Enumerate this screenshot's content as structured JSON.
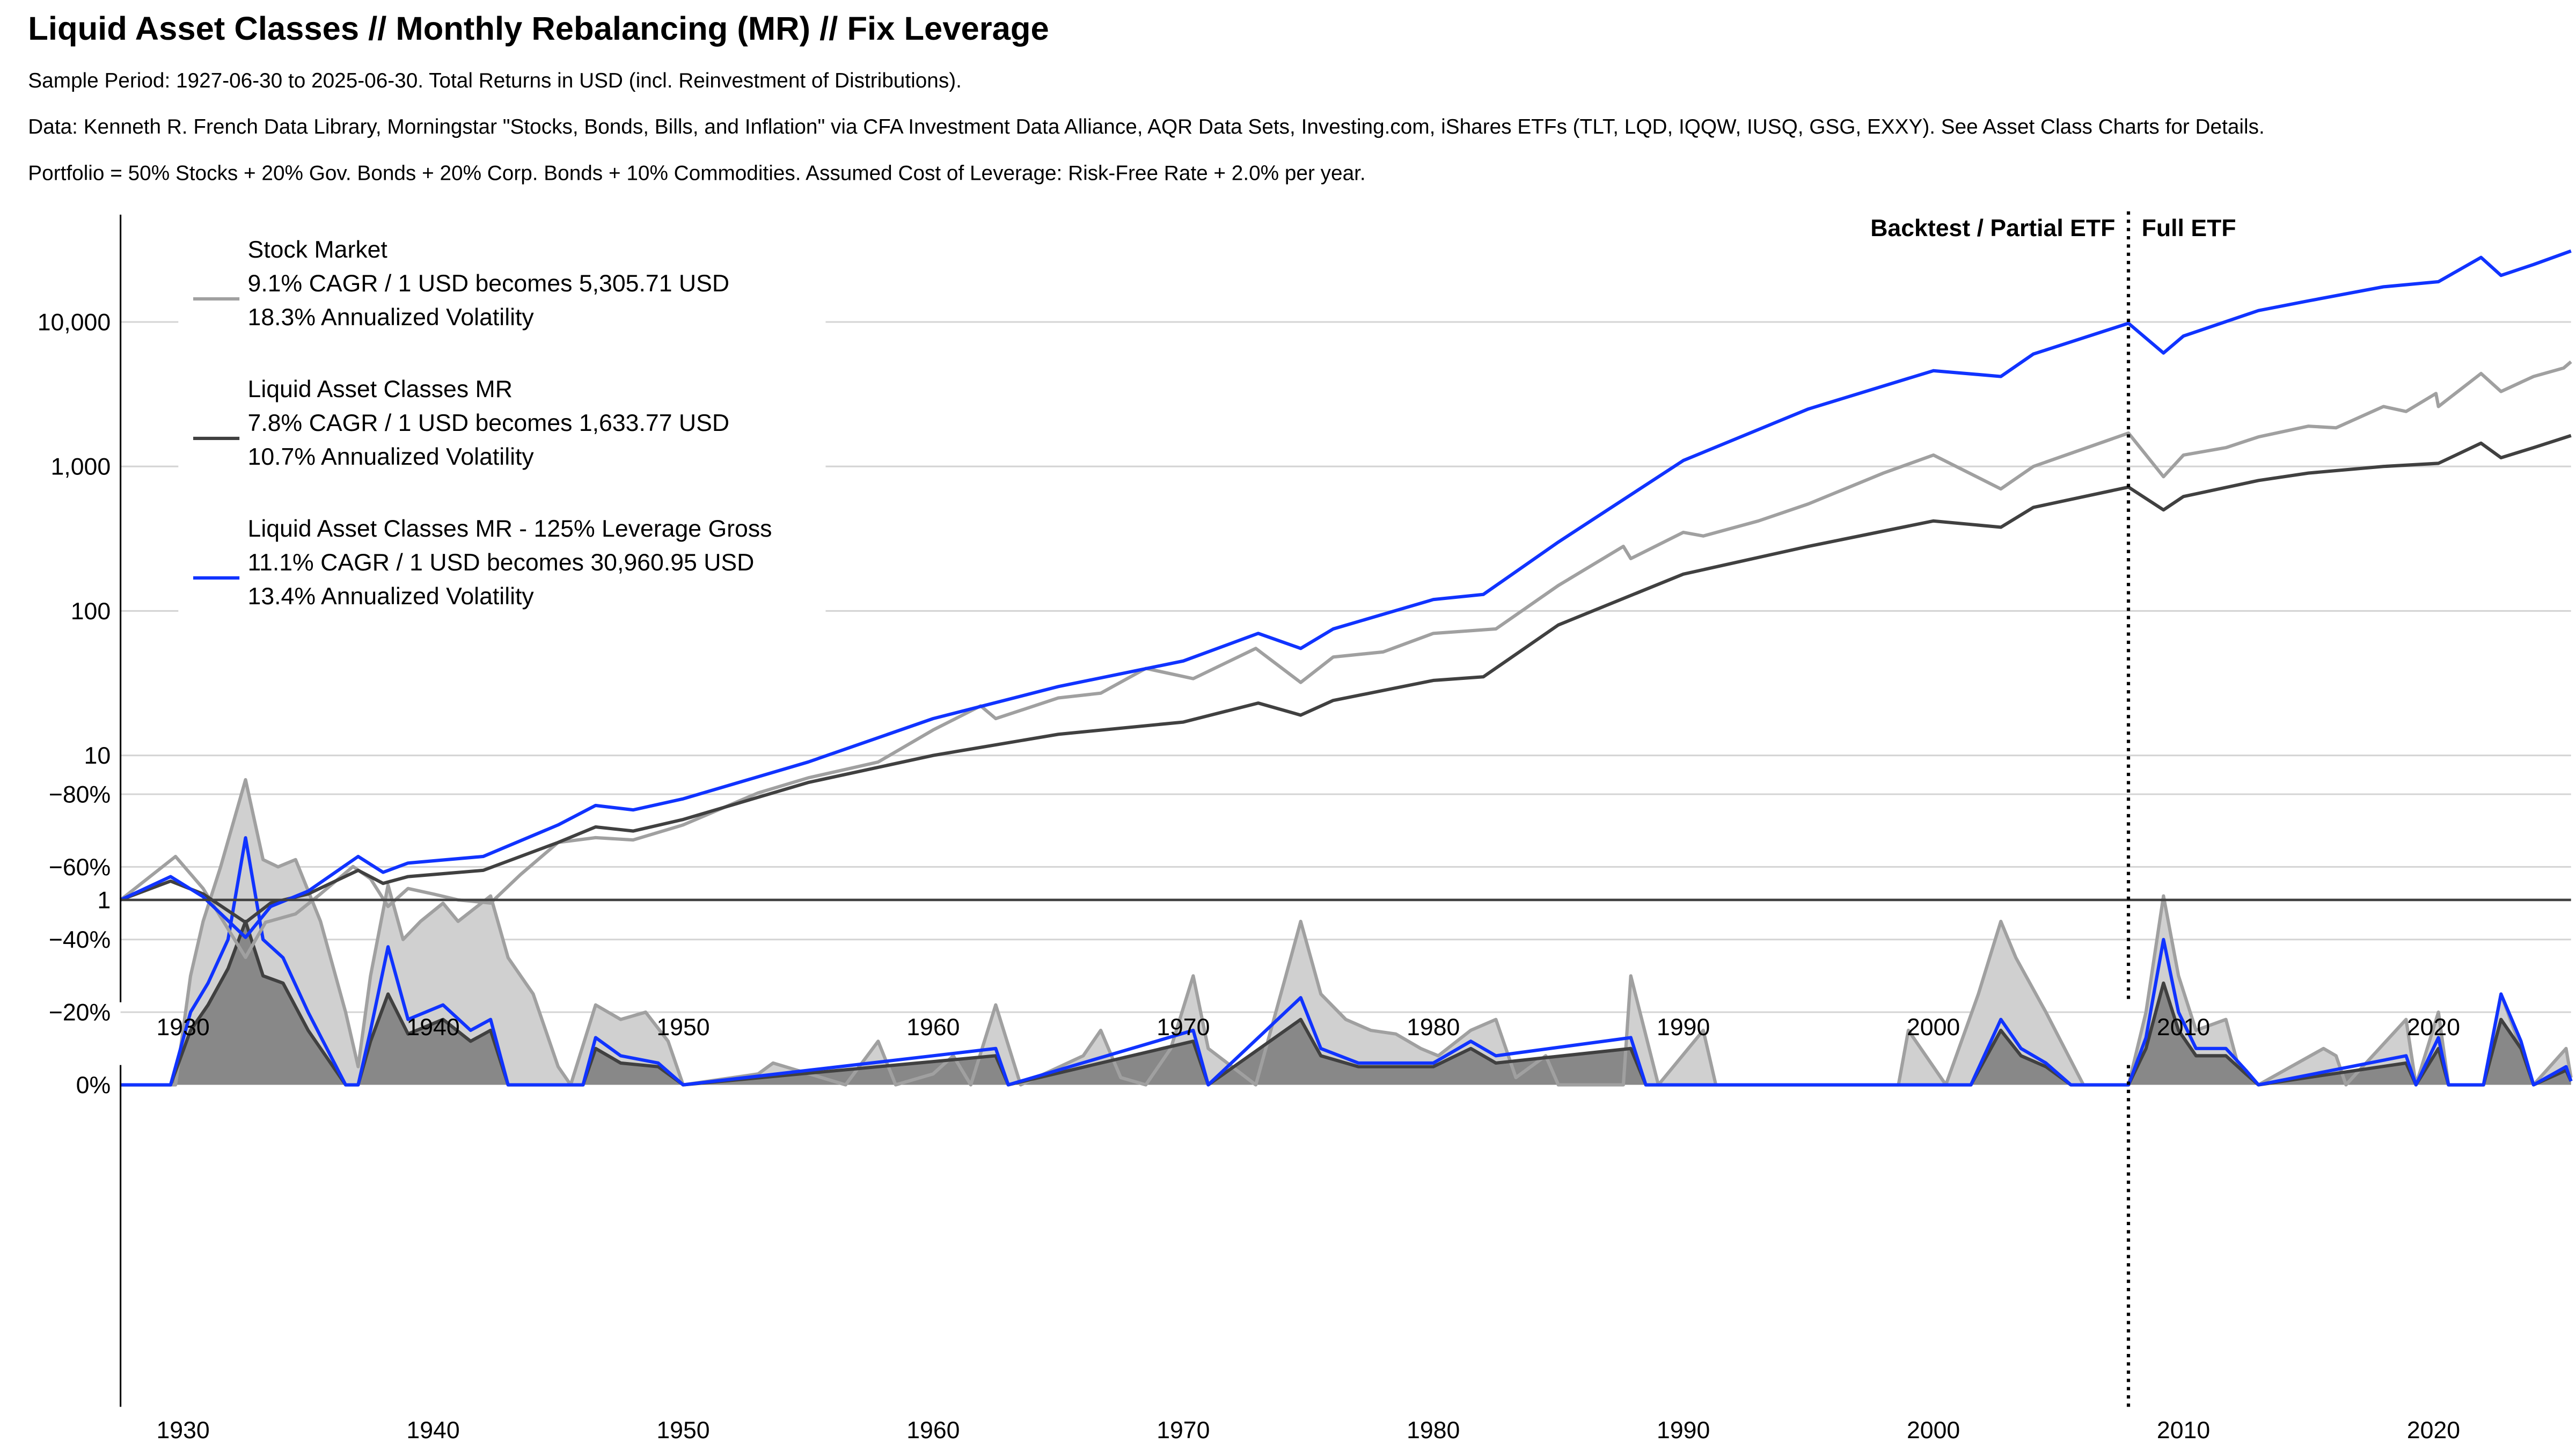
{
  "header": {
    "title": "Liquid Asset Classes // Monthly Rebalancing (MR) // Fix Leverage",
    "lines": [
      "Sample Period: 1927-06-30 to 2025-06-30. Total Returns in USD (incl. Reinvestment of Distributions).",
      "Data: Kenneth R. French Data Library, Morningstar \"Stocks, Bonds, Bills, and Inflation\" via CFA Investment Data Alliance, AQR Data Sets, Investing.com, iShares ETFs (TLT, LQD, IQQW, IUSQ, GSG, EXXY). See Asset Class Charts for Details.",
      "Portfolio = 50% Stocks + 20% Gov. Bonds + 20% Corp. Bonds + 10% Commodities. Assumed Cost of Leverage: Risk-Free Rate + 2.0% per year."
    ]
  },
  "chart_data": [
    {
      "type": "line",
      "yscale": "log",
      "ylim": [
        0.2,
        40000
      ],
      "xlim": [
        1927.5,
        2025.5
      ],
      "yticks": [
        1,
        10,
        100,
        1000,
        10000
      ],
      "ytick_labels": [
        "1",
        "10",
        "100",
        "1,000",
        "10,000"
      ],
      "xticks": [
        1930,
        1940,
        1950,
        1960,
        1970,
        1980,
        1990,
        2000,
        2010,
        2020
      ],
      "xtick_labels": [
        "1930",
        "1940",
        "1950",
        "1960",
        "1970",
        "1980",
        "1990",
        "2000",
        "2010",
        "2020"
      ],
      "grid": true,
      "legend_placement": "top-left",
      "annotations": {
        "split_year": 2007.8,
        "left_label": "Backtest / Partial ETF",
        "right_label": "Full ETF"
      },
      "series": [
        {
          "name": "Stock Market",
          "legend": [
            "Stock Market",
            "9.1% CAGR / 1 USD becomes 5,305.71 USD",
            "18.3% Annualized Volatility"
          ],
          "color": "#a0a0a0",
          "x": [
            1927.5,
            1929.7,
            1930.8,
            1932.5,
            1933.3,
            1934.5,
            1935.5,
            1936.8,
            1937.5,
            1938.2,
            1939,
            1940,
            1941,
            1942.3,
            1943.5,
            1945,
            1946.5,
            1948,
            1950,
            1953,
            1955,
            1957.8,
            1960,
            1961.9,
            1962.5,
            1965,
            1966.7,
            1968.5,
            1970.4,
            1972.9,
            1974.7,
            1976,
            1978,
            1980,
            1982.5,
            1985,
            1987.6,
            1987.9,
            1990,
            1990.8,
            1993,
            1995,
            1998,
            2000,
            2002.7,
            2004,
            2007.8,
            2009.2,
            2010,
            2011.7,
            2013,
            2015,
            2016.1,
            2018,
            2018.9,
            2020.1,
            2020.2,
            2021.9,
            2022.7,
            2024,
            2025.2,
            2025.5
          ],
          "y": [
            1,
            2.0,
            1.2,
            0.4,
            0.7,
            0.8,
            1.1,
            1.7,
            1.4,
            0.9,
            1.2,
            1.1,
            1.0,
            0.95,
            1.5,
            2.5,
            2.7,
            2.6,
            3.3,
            5.5,
            7,
            9,
            15,
            22,
            18,
            25,
            27,
            40,
            34,
            55,
            32,
            48,
            52,
            70,
            75,
            150,
            280,
            230,
            350,
            330,
            420,
            550,
            900,
            1200,
            700,
            1000,
            1700,
            850,
            1200,
            1350,
            1600,
            1900,
            1850,
            2600,
            2400,
            3200,
            2600,
            4400,
            3300,
            4200,
            4800,
            5300
          ]
        },
        {
          "name": "Liquid Asset Classes MR",
          "legend": [
            "Liquid Asset Classes MR",
            "7.8% CAGR / 1 USD becomes 1,633.77 USD",
            "10.7% Annualized Volatility"
          ],
          "color": "#404040",
          "x": [
            1927.5,
            1929.5,
            1930.8,
            1932.5,
            1933.5,
            1935,
            1937,
            1938,
            1939,
            1942,
            1945,
            1946.5,
            1948,
            1950,
            1955,
            1960,
            1965,
            1970,
            1973,
            1974.7,
            1976,
            1980,
            1982,
            1985,
            1990,
            1995,
            2000,
            2002.7,
            2004,
            2007.8,
            2009.2,
            2010,
            2013,
            2015,
            2018,
            2020.2,
            2021.9,
            2022.7,
            2024,
            2025.5
          ],
          "y": [
            1,
            1.35,
            1.1,
            0.7,
            0.95,
            1.1,
            1.6,
            1.3,
            1.45,
            1.6,
            2.5,
            3.2,
            3.0,
            3.6,
            6.5,
            10,
            14,
            17,
            23,
            19,
            24,
            33,
            35,
            80,
            180,
            280,
            420,
            380,
            520,
            720,
            500,
            620,
            800,
            900,
            1000,
            1050,
            1450,
            1150,
            1350,
            1634
          ]
        },
        {
          "name": "Liquid Asset Classes MR - 125% Leverage Gross",
          "legend": [
            "Liquid Asset Classes MR - 125% Leverage Gross",
            "11.1% CAGR / 1 USD becomes 30,960.95 USD",
            "13.4% Annualized Volatility"
          ],
          "color": "#1033ff",
          "x": [
            1927.5,
            1929.5,
            1930.8,
            1932.5,
            1933.5,
            1935,
            1937,
            1938,
            1939,
            1942,
            1945,
            1946.5,
            1948,
            1950,
            1955,
            1960,
            1965,
            1970,
            1973,
            1974.7,
            1976,
            1980,
            1982,
            1985,
            1990,
            1995,
            2000,
            2002.7,
            2004,
            2007.8,
            2009.2,
            2010,
            2013,
            2015,
            2018,
            2020.2,
            2021.9,
            2022.7,
            2024,
            2025.5
          ],
          "y": [
            1,
            1.45,
            1.05,
            0.55,
            0.9,
            1.15,
            2.0,
            1.55,
            1.8,
            2.0,
            3.3,
            4.5,
            4.2,
            5,
            9,
            18,
            30,
            45,
            70,
            55,
            75,
            120,
            130,
            300,
            1100,
            2500,
            4600,
            4200,
            6000,
            9800,
            6100,
            8000,
            12000,
            14000,
            17500,
            19000,
            28000,
            21000,
            25000,
            31000
          ]
        }
      ]
    },
    {
      "type": "area",
      "ylim": [
        -88,
        4
      ],
      "yticks": [
        0,
        -20,
        -40,
        -60,
        -80
      ],
      "ytick_labels": [
        "0%",
        "−20%",
        "−40%",
        "−60%",
        "−80%"
      ],
      "xlim": [
        1927.5,
        2025.5
      ],
      "grid": true,
      "series": [
        {
          "name": "Stock Market",
          "color": "#a0a0a0",
          "fill": "#d0d0d0",
          "x": [
            1927.5,
            1929.7,
            1930.3,
            1930.8,
            1931.5,
            1932.5,
            1933.2,
            1933.8,
            1934.5,
            1935.5,
            1936.5,
            1937,
            1937.5,
            1938.2,
            1938.8,
            1939.5,
            1940.4,
            1941,
            1942.3,
            1943,
            1944,
            1945,
            1945.5,
            1946.5,
            1947.5,
            1948.5,
            1949.4,
            1950,
            1953,
            1953.6,
            1956.5,
            1957.8,
            1958.5,
            1960,
            1960.8,
            1961.5,
            1962.5,
            1963.5,
            1966,
            1966.7,
            1967.5,
            1968.5,
            1969.5,
            1970.4,
            1971,
            1972.9,
            1974.1,
            1974.7,
            1975.5,
            1976.5,
            1977.5,
            1978.5,
            1979.5,
            1980.2,
            1981.5,
            1982.5,
            1983.3,
            1984.5,
            1985,
            1987.6,
            1987.9,
            1989,
            1990.8,
            1991.3,
            1998.6,
            1999,
            2000.5,
            2001.8,
            2002.7,
            2003.3,
            2004.5,
            2006,
            2007.8,
            2008.5,
            2009.2,
            2009.8,
            2010.5,
            2011.7,
            2012.2,
            2013,
            2015.6,
            2016.1,
            2016.5,
            2018.9,
            2019.3,
            2020.2,
            2020.6,
            2022,
            2022.7,
            2023.5,
            2024,
            2025.3,
            2025.5
          ],
          "y": [
            0,
            0,
            -30,
            -45,
            -60,
            -84,
            -62,
            -60,
            -62,
            -45,
            -20,
            -5,
            -30,
            -55,
            -40,
            -45,
            -50,
            -45,
            -52,
            -35,
            -25,
            -5,
            0,
            -22,
            -18,
            -20,
            -12,
            0,
            -3,
            -6,
            0,
            -12,
            0,
            -3,
            -8,
            0,
            -22,
            0,
            -8,
            -15,
            -2,
            0,
            -10,
            -30,
            -10,
            0,
            -30,
            -45,
            -25,
            -18,
            -15,
            -14,
            -10,
            -8,
            -15,
            -18,
            -2,
            -8,
            0,
            0,
            -30,
            0,
            -15,
            0,
            0,
            -15,
            0,
            -25,
            -45,
            -35,
            -20,
            0,
            0,
            -20,
            -52,
            -30,
            -15,
            -18,
            -5,
            0,
            -10,
            -8,
            0,
            -18,
            0,
            -20,
            0,
            0,
            -25,
            -10,
            0,
            -10,
            -2
          ]
        },
        {
          "name": "Liquid Asset Classes MR",
          "color": "#404040",
          "fill": "#888888",
          "x": [
            1927.5,
            1929.5,
            1930.3,
            1931,
            1931.8,
            1932.5,
            1933.2,
            1934,
            1935,
            1936.5,
            1937,
            1937.5,
            1938.2,
            1939,
            1940.4,
            1941.5,
            1942.3,
            1943,
            1946,
            1946.5,
            1947.5,
            1949,
            1950,
            1962.5,
            1963,
            1970.4,
            1971,
            1974.7,
            1975.5,
            1977,
            1978,
            1980,
            1981.5,
            1982.5,
            1987.9,
            1988.5,
            2001.5,
            2002.7,
            2003.5,
            2004.5,
            2005.5,
            2007.8,
            2008.5,
            2009.2,
            2009.8,
            2010.5,
            2011.7,
            2012.5,
            2013,
            2018.9,
            2019.3,
            2020.2,
            2020.6,
            2022,
            2022.7,
            2023.5,
            2024,
            2025.3,
            2025.5
          ],
          "y": [
            0,
            0,
            -15,
            -22,
            -32,
            -45,
            -30,
            -28,
            -15,
            0,
            0,
            -12,
            -25,
            -14,
            -18,
            -12,
            -15,
            0,
            0,
            -10,
            -6,
            -5,
            0,
            -8,
            0,
            -12,
            0,
            -18,
            -8,
            -5,
            -5,
            -5,
            -10,
            -6,
            -10,
            0,
            0,
            -15,
            -8,
            -5,
            0,
            0,
            -10,
            -28,
            -15,
            -8,
            -8,
            -3,
            0,
            -6,
            0,
            -10,
            0,
            0,
            -18,
            -10,
            0,
            -4,
            -1
          ]
        },
        {
          "name": "Liquid Asset Classes MR - 125% Leverage Gross",
          "color": "#1033ff",
          "fill": "none",
          "x": [
            1927.5,
            1929.5,
            1930.3,
            1931,
            1931.8,
            1932.5,
            1933.2,
            1934,
            1935,
            1936.5,
            1937,
            1937.5,
            1938.2,
            1939,
            1940.4,
            1941.5,
            1942.3,
            1943,
            1946,
            1946.5,
            1947.5,
            1949,
            1950,
            1962.5,
            1963,
            1970.4,
            1971,
            1974.7,
            1975.5,
            1977,
            1978,
            1980,
            1981.5,
            1982.5,
            1987.9,
            1988.5,
            2001.5,
            2002.7,
            2003.5,
            2004.5,
            2005.5,
            2007.8,
            2008.5,
            2009.2,
            2009.8,
            2010.5,
            2011.7,
            2012.5,
            2013,
            2018.9,
            2019.3,
            2020.2,
            2020.6,
            2022,
            2022.7,
            2023.5,
            2024,
            2025.3,
            2025.5
          ],
          "y": [
            0,
            0,
            -20,
            -28,
            -40,
            -68,
            -40,
            -35,
            -20,
            0,
            0,
            -15,
            -38,
            -18,
            -22,
            -15,
            -18,
            0,
            0,
            -13,
            -8,
            -6,
            0,
            -10,
            0,
            -15,
            0,
            -24,
            -10,
            -6,
            -6,
            -6,
            -12,
            -8,
            -13,
            0,
            0,
            -18,
            -10,
            -6,
            0,
            0,
            -13,
            -40,
            -20,
            -10,
            -10,
            -4,
            0,
            -8,
            0,
            -13,
            0,
            0,
            -25,
            -12,
            0,
            -5,
            -1
          ]
        }
      ]
    }
  ]
}
